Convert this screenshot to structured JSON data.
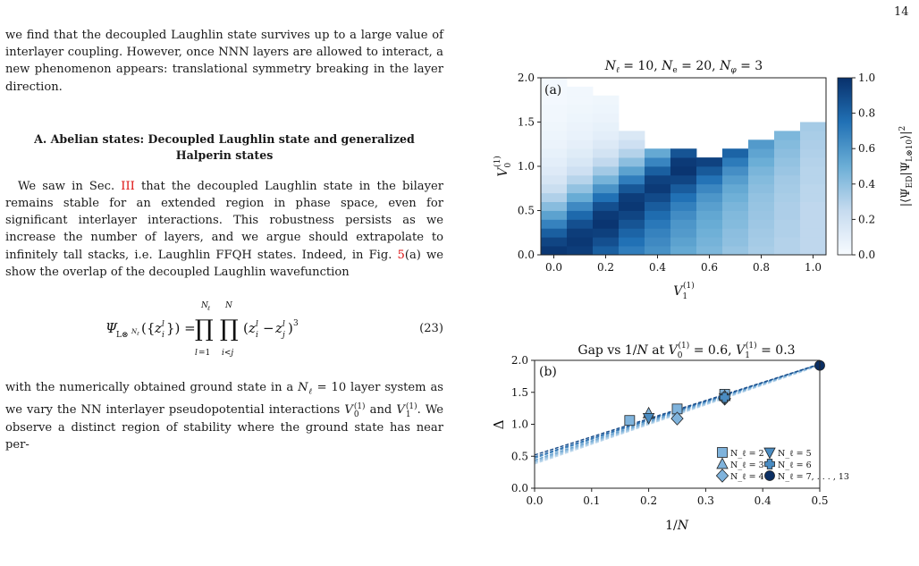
{
  "page": {
    "number": "14"
  },
  "body": {
    "para1": "we find that the decoupled Laughlin state survives up to a large value of interlayer coupling. However, once NNN layers are allowed to interact, a new phenomenon appears: translational symmetry breaking in the layer direction.",
    "section_heading": "A.   Abelian states: Decoupled Laughlin state and generalized Halperin states",
    "para2_a": "We saw in Sec. ",
    "para2_ref": "III",
    "para2_b": " that the decoupled Laughlin state in the bilayer remains stable for an extended region in phase space, even for significant interlayer interactions. This robustness persists as we increase the number of layers, and we argue should extrapolate to infinitely tall stacks, i.e. Laughlin FFQH states. Indeed, in Fig. ",
    "para2_figref": "5",
    "para2_c": "(a) we show the overlap of the decoupled Laughlin wavefunction",
    "eq_number": "(23)",
    "para3_a": "with the numerically obtained ground state in a ",
    "para3_b": " layer system as we vary the NN interlayer pseudopotential interactions ",
    "para3_c": " and ",
    "para3_d": ". We observe a distinct region of stability where the ground state has near per-"
  },
  "figure": {
    "panel_a": {
      "title": "N_ℓ = 10, N_e = 20, N_φ = 3",
      "label": "(a)",
      "xlabel": "V_1^(1)",
      "ylabel": "V_0^(1)",
      "colorbar_label": "|⟨Ψ_ED|Ψ_L⊗10⟩|²",
      "colormap": [
        "#f7fbff",
        "#c6dbef",
        "#6baed6",
        "#2171b5",
        "#08306b"
      ]
    },
    "panel_b": {
      "title": "Gap vs 1/N at V_0^(1) = 0.6, V_1^(1) = 0.3",
      "label": "(b)",
      "xlabel": "1/N",
      "ylabel": "Δ",
      "legend": [
        "N_ℓ = 2",
        "N_ℓ = 3",
        "N_ℓ = 4",
        "N_ℓ = 5",
        "N_ℓ = 6",
        "N_ℓ = 7, . . . , 13"
      ]
    }
  },
  "chart_data": [
    {
      "type": "heatmap",
      "title": "N_ℓ = 10, N_e = 20, N_φ = 3",
      "xlabel": "V_1^(1)",
      "ylabel": "V_0^(1)",
      "xlim": [
        -0.05,
        1.05
      ],
      "ylim": [
        0,
        2.0
      ],
      "x_ticks": [
        0.0,
        0.2,
        0.4,
        0.6,
        0.8,
        1.0
      ],
      "y_ticks": [
        0.0,
        0.5,
        1.0,
        1.5,
        2.0
      ],
      "colorbar": {
        "range": [
          0,
          1.0
        ],
        "ticks": [
          0.0,
          0.2,
          0.4,
          0.6,
          0.8,
          1.0
        ]
      },
      "x": [
        0.0,
        0.1,
        0.2,
        0.3,
        0.4,
        0.5,
        0.6,
        0.7,
        0.8,
        0.9,
        1.0
      ],
      "y": [
        0.0,
        0.1,
        0.2,
        0.3,
        0.4,
        0.5,
        0.6,
        0.7,
        0.8,
        0.9,
        1.0,
        1.1,
        1.2,
        1.3,
        1.4,
        1.5,
        1.6,
        1.7,
        1.8,
        1.9
      ],
      "z": [
        [
          0.97,
          0.95,
          0.82,
          0.7,
          0.62,
          0.52,
          0.45,
          0.38,
          0.33,
          0.3,
          0.27
        ],
        [
          0.92,
          0.97,
          0.88,
          0.75,
          0.65,
          0.55,
          0.47,
          0.4,
          0.34,
          0.3,
          0.27
        ],
        [
          0.82,
          0.95,
          0.94,
          0.8,
          0.68,
          0.58,
          0.49,
          0.41,
          0.35,
          0.31,
          0.27
        ],
        [
          0.68,
          0.88,
          0.98,
          0.86,
          0.72,
          0.6,
          0.51,
          0.43,
          0.36,
          0.31,
          0.27
        ],
        [
          0.55,
          0.78,
          0.96,
          0.92,
          0.77,
          0.64,
          0.53,
          0.44,
          0.37,
          0.32,
          0.27
        ],
        [
          0.42,
          0.65,
          0.88,
          0.97,
          0.83,
          0.69,
          0.56,
          0.46,
          0.38,
          0.32,
          0.27
        ],
        [
          0.31,
          0.51,
          0.75,
          0.95,
          0.9,
          0.75,
          0.6,
          0.49,
          0.39,
          0.33,
          0.28
        ],
        [
          0.23,
          0.39,
          0.61,
          0.85,
          0.96,
          0.83,
          0.66,
          0.52,
          0.41,
          0.34,
          0.28
        ],
        [
          0.17,
          0.29,
          0.47,
          0.7,
          0.93,
          0.92,
          0.74,
          0.57,
          0.43,
          0.35,
          0.29
        ],
        [
          0.13,
          0.21,
          0.35,
          0.55,
          0.82,
          0.98,
          0.84,
          0.63,
          0.46,
          0.37,
          0.29
        ],
        [
          0.1,
          0.16,
          0.26,
          0.41,
          0.67,
          0.96,
          0.93,
          0.71,
          0.5,
          0.39,
          0.3
        ],
        [
          0.08,
          0.12,
          0.19,
          0.3,
          0.52,
          0.86,
          null,
          0.8,
          0.54,
          0.41,
          0.31
        ],
        [
          0.06,
          0.09,
          0.14,
          0.21,
          null,
          null,
          null,
          null,
          0.58,
          0.43,
          0.32
        ],
        [
          0.05,
          0.07,
          0.1,
          0.15,
          null,
          null,
          null,
          null,
          null,
          0.45,
          0.33
        ],
        [
          0.04,
          0.06,
          0.08,
          null,
          null,
          null,
          null,
          null,
          null,
          null,
          0.34
        ],
        [
          0.03,
          0.05,
          0.06,
          null,
          null,
          null,
          null,
          null,
          null,
          null,
          null
        ],
        [
          0.03,
          0.04,
          0.05,
          null,
          null,
          null,
          null,
          null,
          null,
          null,
          null
        ],
        [
          0.02,
          0.03,
          0.04,
          null,
          null,
          null,
          null,
          null,
          null,
          null,
          null
        ],
        [
          0.02,
          0.03,
          null,
          null,
          null,
          null,
          null,
          null,
          null,
          null,
          null
        ],
        [
          0.02,
          null,
          null,
          null,
          null,
          null,
          null,
          null,
          null,
          null,
          null
        ]
      ]
    },
    {
      "type": "scatter",
      "title": "Gap vs 1/N at V_0^(1) = 0.6, V_1^(1) = 0.3",
      "xlabel": "1/N",
      "ylabel": "Δ",
      "xlim": [
        0.0,
        0.5
      ],
      "ylim": [
        0.0,
        2.0
      ],
      "x_ticks": [
        0.0,
        0.1,
        0.2,
        0.3,
        0.4,
        0.5
      ],
      "y_ticks": [
        0.0,
        0.5,
        1.0,
        1.5,
        2.0
      ],
      "legend_position": "bottom-right",
      "series": [
        {
          "name": "N_ℓ = 2",
          "marker": "square",
          "x": [
            0.1667,
            0.25,
            0.3333
          ],
          "y": [
            1.06,
            1.24,
            1.47
          ]
        },
        {
          "name": "N_ℓ = 3",
          "marker": "triangle-up",
          "x": [
            0.2,
            0.3333
          ],
          "y": [
            1.17,
            1.44
          ]
        },
        {
          "name": "N_ℓ = 4",
          "marker": "diamond",
          "x": [
            0.25,
            0.3333
          ],
          "y": [
            1.09,
            1.4
          ]
        },
        {
          "name": "N_ℓ = 5",
          "marker": "triangle-down",
          "x": [
            0.2,
            0.3333
          ],
          "y": [
            1.1,
            1.41
          ]
        },
        {
          "name": "N_ℓ = 6",
          "marker": "plus",
          "x": [
            0.3333
          ],
          "y": [
            1.42
          ]
        },
        {
          "name": "N_ℓ = 7, . . . , 13",
          "marker": "circle",
          "x": [
            0.5
          ],
          "y": [
            1.92
          ]
        }
      ],
      "fit_lines": [
        {
          "intercept": 0.38,
          "slope": 3.08
        },
        {
          "intercept": 0.4,
          "slope": 3.05
        },
        {
          "intercept": 0.42,
          "slope": 3.02
        },
        {
          "intercept": 0.44,
          "slope": 3.0
        },
        {
          "intercept": 0.47,
          "slope": 2.95
        },
        {
          "intercept": 0.49,
          "slope": 2.9
        },
        {
          "intercept": 0.52,
          "slope": 2.84
        }
      ]
    }
  ]
}
